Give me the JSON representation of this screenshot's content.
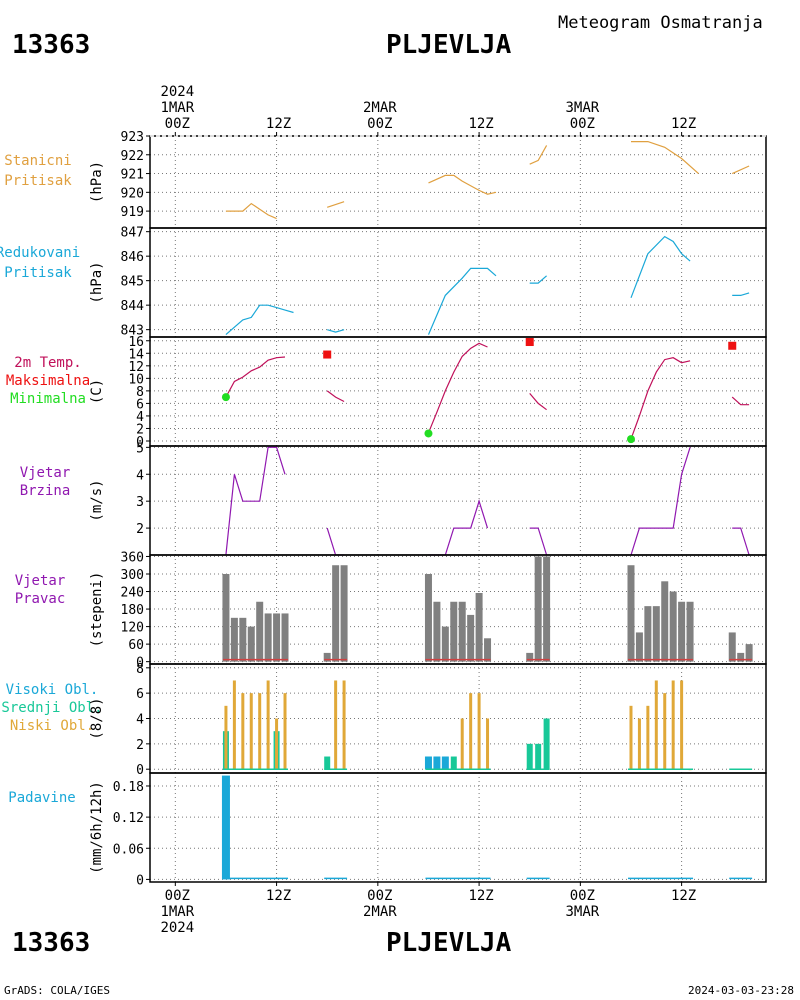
{
  "header": {
    "station_id": "13363",
    "station_name": "PLJEVLJA",
    "chart_title": "Meteogram Osmatranja"
  },
  "footer": {
    "station_id": "13363",
    "station_name": "PLJEVLJA",
    "credit": "GrADS: COLA/IGES",
    "timestamp": "2024-03-03-23:28"
  },
  "time_axis": {
    "top_ticks": [
      {
        "hour": 0,
        "lines": [
          "2024",
          "1MAR",
          "00Z"
        ]
      },
      {
        "hour": 12,
        "lines": [
          "12Z"
        ]
      },
      {
        "hour": 24,
        "lines": [
          "2MAR",
          "00Z"
        ]
      },
      {
        "hour": 36,
        "lines": [
          "12Z"
        ]
      },
      {
        "hour": 48,
        "lines": [
          "3MAR",
          "00Z"
        ]
      },
      {
        "hour": 60,
        "lines": [
          "12Z"
        ]
      }
    ],
    "bottom_ticks": [
      {
        "hour": 0,
        "lines": [
          "00Z",
          "1MAR",
          "2024"
        ]
      },
      {
        "hour": 12,
        "lines": [
          "12Z"
        ]
      },
      {
        "hour": 24,
        "lines": [
          "00Z",
          "2MAR"
        ]
      },
      {
        "hour": 36,
        "lines": [
          "12Z"
        ]
      },
      {
        "hour": 48,
        "lines": [
          "00Z",
          "3MAR"
        ]
      },
      {
        "hour": 60,
        "lines": [
          "12Z"
        ]
      }
    ],
    "hour_range": [
      -3,
      70
    ]
  },
  "colors": {
    "station_pressure": "#e0a040",
    "reduced_pressure": "#1aa8d8",
    "temp_max_line": "#c0105a",
    "temp_max_marker": "#ee1111",
    "temp_min_marker": "#22dd22",
    "wind_speed": "#9018b0",
    "wind_dir": "#808080",
    "wind_dir_base": "#d04040",
    "cloud_high": "#1aa8d8",
    "cloud_mid": "#18c898",
    "cloud_low": "#e0a838",
    "precip": "#1aa8d8"
  },
  "chart_data": [
    {
      "type": "line",
      "panel": "station_pressure",
      "label_lines": [
        "Stanicni",
        "Pritisak"
      ],
      "unit": "(hPa)",
      "ylim": [
        918.1,
        923
      ],
      "yticks": [
        919,
        920,
        921,
        922,
        923
      ],
      "series": [
        {
          "points": [
            [
              6,
              919
            ],
            [
              7,
              919
            ],
            [
              8,
              919
            ],
            [
              9,
              919.4
            ],
            [
              10,
              919.1
            ],
            [
              11,
              918.8
            ],
            [
              12,
              918.6
            ]
          ]
        },
        {
          "points": [
            [
              18,
              919.2
            ],
            [
              20,
              919.5
            ]
          ]
        },
        {
          "points": [
            [
              30,
              920.5
            ],
            [
              32,
              920.9
            ],
            [
              33,
              920.9
            ],
            [
              34,
              920.6
            ],
            [
              36,
              920.1
            ],
            [
              37,
              919.9
            ],
            [
              38,
              920
            ]
          ]
        },
        {
          "points": [
            [
              42,
              921.5
            ],
            [
              43,
              921.7
            ],
            [
              44,
              922.5
            ]
          ]
        },
        {
          "points": [
            [
              54,
              922.7
            ],
            [
              56,
              922.7
            ],
            [
              58,
              922.4
            ],
            [
              60,
              921.8
            ],
            [
              62,
              921
            ]
          ]
        },
        {
          "points": [
            [
              66,
              921
            ],
            [
              68,
              921.4
            ]
          ]
        }
      ]
    },
    {
      "type": "line",
      "panel": "reduced_pressure",
      "label_lines": [
        "Redukovani",
        "Pritisak"
      ],
      "unit": "(hPa)",
      "ylim": [
        842.7,
        847.15
      ],
      "yticks": [
        843,
        844,
        845,
        846,
        847
      ],
      "series": [
        {
          "points": [
            [
              6,
              842.8
            ],
            [
              7,
              843.1
            ],
            [
              8,
              843.4
            ],
            [
              9,
              843.5
            ],
            [
              10,
              844
            ],
            [
              11,
              844
            ],
            [
              12,
              843.9
            ],
            [
              13,
              843.8
            ],
            [
              14,
              843.7
            ]
          ]
        },
        {
          "points": [
            [
              18,
              843
            ],
            [
              19,
              842.9
            ],
            [
              20,
              843
            ]
          ]
        },
        {
          "points": [
            [
              30,
              842.8
            ],
            [
              32,
              844.4
            ],
            [
              34,
              845.1
            ],
            [
              35,
              845.5
            ],
            [
              36,
              845.5
            ],
            [
              37,
              845.5
            ],
            [
              38,
              845.2
            ]
          ]
        },
        {
          "points": [
            [
              42,
              844.9
            ],
            [
              43,
              844.9
            ],
            [
              44,
              845.2
            ]
          ]
        },
        {
          "points": [
            [
              54,
              844.3
            ],
            [
              56,
              846.1
            ],
            [
              58,
              846.8
            ],
            [
              59,
              846.6
            ],
            [
              60,
              846.1
            ],
            [
              61,
              845.8
            ]
          ]
        },
        {
          "points": [
            [
              66,
              844.4
            ],
            [
              67,
              844.4
            ],
            [
              68,
              844.5
            ]
          ]
        }
      ]
    },
    {
      "type": "line",
      "panel": "temperature",
      "label_lines": [
        "2m Temp.",
        "Maksimalna",
        "Minimalna"
      ],
      "unit": "(C)",
      "ylim": [
        -0.8,
        16.6
      ],
      "yticks": [
        0,
        2,
        4,
        6,
        8,
        10,
        12,
        14,
        16
      ],
      "series": [
        {
          "points": [
            [
              6,
              7
            ],
            [
              7,
              9.5
            ],
            [
              8,
              10.2
            ],
            [
              9,
              11.2
            ],
            [
              10,
              11.8
            ],
            [
              11,
              12.9
            ],
            [
              12,
              13.3
            ],
            [
              13,
              13.4
            ]
          ]
        },
        {
          "points": [
            [
              18,
              8
            ],
            [
              19,
              7
            ],
            [
              20,
              6.3
            ]
          ]
        },
        {
          "points": [
            [
              30,
              1.3
            ],
            [
              31,
              4.6
            ],
            [
              32,
              8
            ],
            [
              33,
              11
            ],
            [
              34,
              13.5
            ],
            [
              35,
              14.8
            ],
            [
              36,
              15.6
            ],
            [
              37,
              15
            ]
          ]
        },
        {
          "points": [
            [
              42,
              7.6
            ],
            [
              43,
              6
            ],
            [
              44,
              5
            ]
          ]
        },
        {
          "points": [
            [
              54,
              0.3
            ],
            [
              55,
              4
            ],
            [
              56,
              8
            ],
            [
              57,
              11
            ],
            [
              58,
              13
            ],
            [
              59,
              13.3
            ],
            [
              60,
              12.5
            ],
            [
              61,
              12.8
            ]
          ]
        },
        {
          "points": [
            [
              66,
              7
            ],
            [
              67,
              5.8
            ],
            [
              68,
              5.8
            ]
          ]
        }
      ],
      "max_markers": [
        [
          18,
          13.8
        ],
        [
          42,
          15.8
        ],
        [
          66,
          15.2
        ]
      ],
      "min_markers": [
        [
          6,
          7
        ],
        [
          30,
          1.2
        ],
        [
          54,
          0.3
        ]
      ]
    },
    {
      "type": "line",
      "panel": "wind_speed",
      "label_lines": [
        "Vjetar",
        "Brzina"
      ],
      "unit": "(m/s)",
      "ylim": [
        1,
        5.05
      ],
      "yticks": [
        2,
        3,
        4,
        5
      ],
      "series": [
        {
          "points": [
            [
              6,
              1
            ],
            [
              7,
              4
            ],
            [
              8,
              3
            ],
            [
              9,
              3
            ],
            [
              10,
              3
            ],
            [
              11,
              5
            ],
            [
              12,
              5
            ],
            [
              13,
              4
            ]
          ]
        },
        {
          "points": [
            [
              18,
              2
            ],
            [
              19,
              1
            ],
            [
              20,
              1
            ]
          ]
        },
        {
          "points": [
            [
              30,
              1
            ],
            [
              31,
              1
            ],
            [
              32,
              1
            ],
            [
              33,
              2
            ],
            [
              34,
              2
            ],
            [
              35,
              2
            ],
            [
              36,
              3
            ],
            [
              37,
              2
            ]
          ]
        },
        {
          "points": [
            [
              42,
              2
            ],
            [
              43,
              2
            ],
            [
              44,
              1
            ]
          ]
        },
        {
          "points": [
            [
              54,
              1
            ],
            [
              55,
              2
            ],
            [
              56,
              2
            ],
            [
              57,
              2
            ],
            [
              58,
              2
            ],
            [
              59,
              2
            ],
            [
              60,
              4
            ],
            [
              61,
              5
            ]
          ]
        },
        {
          "points": [
            [
              66,
              2
            ],
            [
              67,
              2
            ],
            [
              68,
              1
            ]
          ]
        }
      ]
    },
    {
      "type": "bar",
      "panel": "wind_direction",
      "label_lines": [
        "Vjetar",
        "Pravac"
      ],
      "unit": "(stepeni)",
      "ylim": [
        -8,
        365
      ],
      "yticks": [
        0,
        60,
        120,
        180,
        240,
        300,
        360
      ],
      "x": [
        6,
        7,
        8,
        9,
        10,
        11,
        12,
        13,
        18,
        19,
        20,
        30,
        31,
        32,
        33,
        34,
        35,
        36,
        37,
        42,
        43,
        44,
        54,
        55,
        56,
        57,
        58,
        59,
        60,
        61,
        66,
        67,
        68
      ],
      "values": [
        300,
        150,
        150,
        120,
        205,
        165,
        165,
        165,
        30,
        330,
        330,
        300,
        205,
        120,
        205,
        205,
        160,
        235,
        80,
        30,
        360,
        360,
        330,
        100,
        190,
        190,
        275,
        240,
        205,
        205,
        100,
        30,
        60
      ]
    },
    {
      "type": "bar",
      "panel": "clouds",
      "label_lines": [
        "Visoki Obl.",
        "Srednji Obl.",
        "Niski Obl."
      ],
      "unit": "(8/8)",
      "ylim": [
        -0.3,
        8.3
      ],
      "yticks": [
        0,
        2,
        4,
        6,
        8
      ],
      "series": [
        {
          "name": "Niski Obl.",
          "x": [
            6,
            7,
            8,
            9,
            10,
            11,
            12,
            13,
            19,
            20,
            34,
            35,
            36,
            37,
            54,
            55,
            56,
            57,
            58,
            59,
            60,
            61
          ],
          "values": [
            5,
            7,
            6,
            6,
            6,
            7,
            4,
            6,
            7,
            7,
            4,
            6,
            6,
            4,
            5,
            4,
            5,
            7,
            6,
            7,
            7,
            0
          ]
        },
        {
          "name": "Srednji Obl.",
          "x": [
            6,
            12,
            18,
            30,
            31,
            32,
            33,
            42,
            43,
            44
          ],
          "values": [
            3,
            3,
            1,
            1,
            1,
            1,
            1,
            2,
            2,
            4
          ]
        },
        {
          "name": "Visoki Obl.",
          "x": [
            30,
            31,
            32
          ],
          "values": [
            1,
            1,
            1
          ]
        }
      ]
    },
    {
      "type": "bar",
      "panel": "precipitation",
      "label_lines": [
        "Padavine"
      ],
      "unit": "(mm/6h/12h)",
      "ylim": [
        -0.005,
        0.205
      ],
      "yticks": [
        0,
        0.06,
        0.12,
        0.18
      ],
      "ytick_labels": [
        "0",
        "0.06",
        "0.12",
        "0.18"
      ],
      "x": [
        6
      ],
      "values": [
        0.2
      ]
    }
  ]
}
